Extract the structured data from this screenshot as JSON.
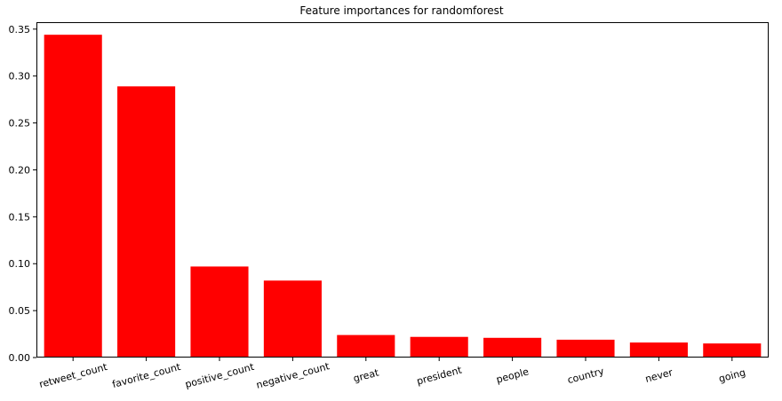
{
  "chart_data": {
    "type": "bar",
    "title": "Feature importances for randomforest",
    "xlabel": "",
    "ylabel": "",
    "categories": [
      "retweet_count",
      "favorite_count",
      "positive_count",
      "negative_count",
      "great",
      "president",
      "people",
      "country",
      "never",
      "going"
    ],
    "values": [
      0.344,
      0.289,
      0.097,
      0.082,
      0.024,
      0.022,
      0.021,
      0.019,
      0.016,
      0.015
    ],
    "ylim": [
      0,
      0.3574
    ],
    "yticks": [
      0.0,
      0.05,
      0.1,
      0.15,
      0.2,
      0.25,
      0.3,
      0.35
    ],
    "ytick_labels": [
      "0.00",
      "0.05",
      "0.10",
      "0.15",
      "0.20",
      "0.25",
      "0.30",
      "0.35"
    ],
    "bar_color": "#ff0000",
    "grid": false,
    "legend": "none"
  }
}
